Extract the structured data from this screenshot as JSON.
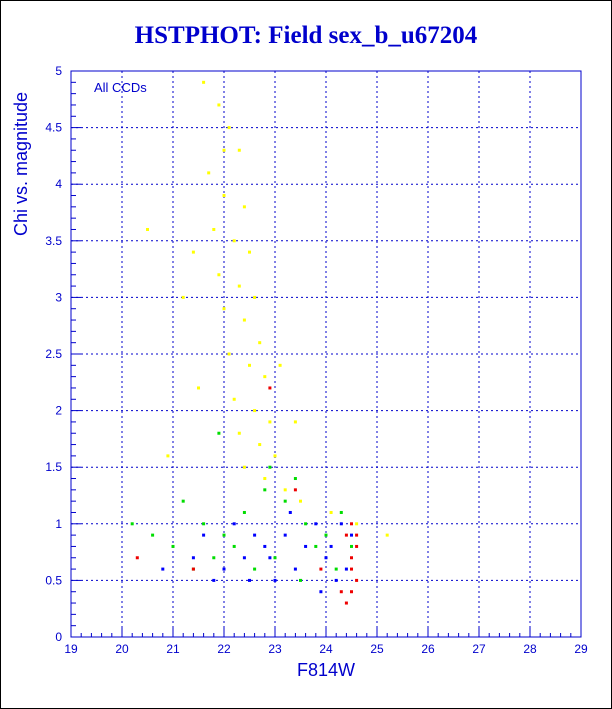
{
  "chart_data": {
    "type": "scatter",
    "title": "HSTPHOT: Field sex_b_u67204",
    "xlabel": "F814W",
    "ylabel": "Chi vs. magnitude",
    "annotation": "All CCDs",
    "xlim": [
      19,
      29
    ],
    "ylim": [
      0,
      5
    ],
    "x_ticks": [
      "19",
      "20",
      "21",
      "22",
      "23",
      "24",
      "25",
      "26",
      "27",
      "28",
      "29"
    ],
    "y_ticks": [
      "0",
      "0.5",
      "1",
      "1.5",
      "2",
      "2.5",
      "3",
      "3.5",
      "4",
      "4.5",
      "5"
    ],
    "grid": true,
    "colors": {
      "axis": "#0000cc",
      "grid": "#0000cc",
      "text": "#0000cc",
      "chip_yellow": "#ffff00",
      "chip_green": "#00dd00",
      "chip_blue": "#0000ff",
      "chip_red": "#ee0000"
    },
    "series": [
      {
        "color": "#ffff00",
        "values": [
          [
            21.6,
            4.9
          ],
          [
            21.9,
            4.7
          ],
          [
            22.1,
            4.5
          ],
          [
            22.3,
            4.3
          ],
          [
            21.7,
            4.1
          ],
          [
            22.0,
            3.9
          ],
          [
            22.4,
            3.8
          ],
          [
            21.8,
            3.6
          ],
          [
            22.2,
            3.5
          ],
          [
            22.5,
            3.4
          ],
          [
            21.9,
            3.2
          ],
          [
            22.3,
            3.1
          ],
          [
            22.6,
            3.0
          ],
          [
            22.0,
            2.9
          ],
          [
            22.4,
            2.8
          ],
          [
            22.7,
            2.6
          ],
          [
            22.1,
            2.5
          ],
          [
            22.5,
            2.4
          ],
          [
            22.8,
            2.3
          ],
          [
            22.2,
            2.1
          ],
          [
            22.6,
            2.0
          ],
          [
            22.9,
            1.9
          ],
          [
            22.3,
            1.8
          ],
          [
            22.7,
            1.7
          ],
          [
            23.0,
            1.6
          ],
          [
            22.4,
            1.5
          ],
          [
            22.8,
            1.4
          ],
          [
            23.2,
            1.3
          ],
          [
            23.5,
            1.2
          ],
          [
            24.1,
            1.1
          ],
          [
            24.6,
            1.0
          ],
          [
            25.2,
            0.9
          ],
          [
            21.5,
            2.2
          ],
          [
            20.9,
            1.6
          ],
          [
            20.5,
            3.6
          ],
          [
            21.2,
            3.0
          ],
          [
            23.1,
            2.4
          ],
          [
            23.4,
            1.9
          ],
          [
            22.0,
            4.3
          ],
          [
            21.4,
            3.4
          ]
        ]
      },
      {
        "color": "#00dd00",
        "values": [
          [
            21.2,
            1.2
          ],
          [
            21.6,
            1.0
          ],
          [
            22.0,
            0.9
          ],
          [
            22.4,
            1.1
          ],
          [
            22.8,
            1.3
          ],
          [
            23.2,
            1.2
          ],
          [
            23.6,
            1.0
          ],
          [
            24.0,
            0.9
          ],
          [
            24.3,
            1.1
          ],
          [
            24.5,
            0.8
          ],
          [
            23.0,
            0.7
          ],
          [
            22.6,
            0.6
          ],
          [
            22.2,
            0.8
          ],
          [
            21.8,
            0.7
          ],
          [
            21.4,
            0.6
          ],
          [
            21.0,
            0.8
          ],
          [
            20.6,
            0.9
          ],
          [
            23.4,
            1.4
          ],
          [
            23.8,
            0.8
          ],
          [
            22.9,
            1.5
          ],
          [
            20.2,
            1.0
          ],
          [
            21.9,
            1.8
          ],
          [
            24.2,
            0.6
          ],
          [
            23.5,
            0.5
          ]
        ]
      },
      {
        "color": "#0000ff",
        "values": [
          [
            22.0,
            0.6
          ],
          [
            22.4,
            0.7
          ],
          [
            22.8,
            0.8
          ],
          [
            23.2,
            0.9
          ],
          [
            23.6,
            0.8
          ],
          [
            24.0,
            0.7
          ],
          [
            24.4,
            0.6
          ],
          [
            24.5,
            0.9
          ],
          [
            23.8,
            1.0
          ],
          [
            23.4,
            0.6
          ],
          [
            23.0,
            0.5
          ],
          [
            22.6,
            0.9
          ],
          [
            22.2,
            1.0
          ],
          [
            21.8,
            0.5
          ],
          [
            21.4,
            0.7
          ],
          [
            24.2,
            0.5
          ],
          [
            24.3,
            1.0
          ],
          [
            23.9,
            0.4
          ],
          [
            22.9,
            0.7
          ],
          [
            21.6,
            0.9
          ],
          [
            20.8,
            0.6
          ],
          [
            23.3,
            1.1
          ],
          [
            24.1,
            0.8
          ],
          [
            22.5,
            0.5
          ]
        ]
      },
      {
        "color": "#ee0000",
        "values": [
          [
            24.5,
            0.7
          ],
          [
            24.6,
            0.5
          ],
          [
            24.4,
            0.9
          ],
          [
            24.5,
            1.0
          ],
          [
            24.6,
            0.8
          ],
          [
            24.3,
            0.4
          ],
          [
            24.5,
            0.6
          ],
          [
            24.4,
            0.3
          ],
          [
            24.6,
            0.9
          ],
          [
            24.5,
            0.4
          ],
          [
            23.9,
            0.6
          ],
          [
            22.9,
            2.2
          ],
          [
            21.4,
            0.6
          ],
          [
            20.3,
            0.7
          ],
          [
            23.4,
            1.3
          ]
        ]
      }
    ]
  }
}
